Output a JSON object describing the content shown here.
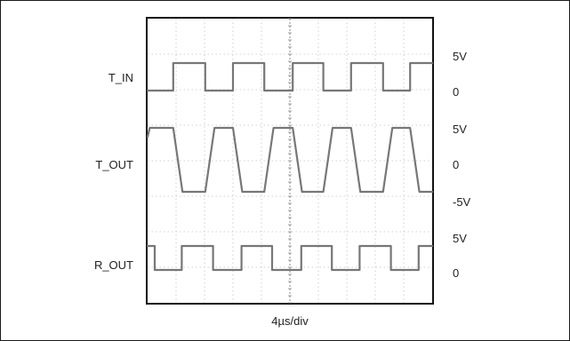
{
  "chart_data": {
    "type": "line",
    "title": "",
    "xlabel": "4µs/div",
    "ylabel": "",
    "grid": true,
    "x_divisions": 10,
    "y_divisions": 8,
    "time_per_div_us": 4,
    "x_range_us": [
      0,
      40
    ],
    "series": [
      {
        "name": "T_IN",
        "y_tick_labels": [
          "5V",
          "0"
        ],
        "low_v": 0,
        "high_v": 5,
        "points_us_v": [
          [
            0,
            0
          ],
          [
            3.6,
            0
          ],
          [
            3.6,
            5
          ],
          [
            8.1,
            5
          ],
          [
            8.1,
            0
          ],
          [
            12.0,
            0
          ],
          [
            12.0,
            5
          ],
          [
            16.4,
            5
          ],
          [
            16.4,
            0
          ],
          [
            20.4,
            0
          ],
          [
            20.4,
            5
          ],
          [
            24.7,
            5
          ],
          [
            24.7,
            0
          ],
          [
            28.6,
            0
          ],
          [
            28.6,
            5
          ],
          [
            33.1,
            5
          ],
          [
            33.1,
            0
          ],
          [
            36.9,
            0
          ],
          [
            36.9,
            5
          ],
          [
            40,
            5
          ]
        ]
      },
      {
        "name": "T_OUT",
        "y_tick_labels": [
          "5V",
          "0",
          "-5V"
        ],
        "low_v": -5,
        "high_v": 5,
        "points_us_v": [
          [
            0,
            3.6
          ],
          [
            0.3,
            5
          ],
          [
            3.6,
            5
          ],
          [
            4.9,
            -5
          ],
          [
            8.1,
            -5
          ],
          [
            9.4,
            5
          ],
          [
            12.0,
            5
          ],
          [
            13.3,
            -5
          ],
          [
            16.4,
            -5
          ],
          [
            17.7,
            5
          ],
          [
            20.4,
            5
          ],
          [
            21.7,
            -5
          ],
          [
            24.7,
            -5
          ],
          [
            26.0,
            5
          ],
          [
            28.6,
            5
          ],
          [
            29.9,
            -5
          ],
          [
            33.1,
            -5
          ],
          [
            34.4,
            5
          ],
          [
            36.9,
            5
          ],
          [
            38.2,
            -5
          ],
          [
            40,
            -5
          ]
        ]
      },
      {
        "name": "R_OUT",
        "y_tick_labels": [
          "5V",
          "0"
        ],
        "low_v": 0,
        "high_v": 5,
        "points_us_v": [
          [
            0,
            5
          ],
          [
            1.0,
            5
          ],
          [
            1.0,
            0
          ],
          [
            4.8,
            0
          ],
          [
            4.8,
            5
          ],
          [
            9.2,
            5
          ],
          [
            9.2,
            0
          ],
          [
            13.2,
            0
          ],
          [
            13.2,
            5
          ],
          [
            17.5,
            5
          ],
          [
            17.5,
            0
          ],
          [
            21.6,
            0
          ],
          [
            21.6,
            5
          ],
          [
            25.9,
            5
          ],
          [
            25.9,
            0
          ],
          [
            29.8,
            0
          ],
          [
            29.8,
            5
          ],
          [
            34.2,
            5
          ],
          [
            34.2,
            0
          ],
          [
            38.1,
            0
          ],
          [
            38.1,
            5
          ],
          [
            40,
            5
          ]
        ]
      }
    ]
  }
}
